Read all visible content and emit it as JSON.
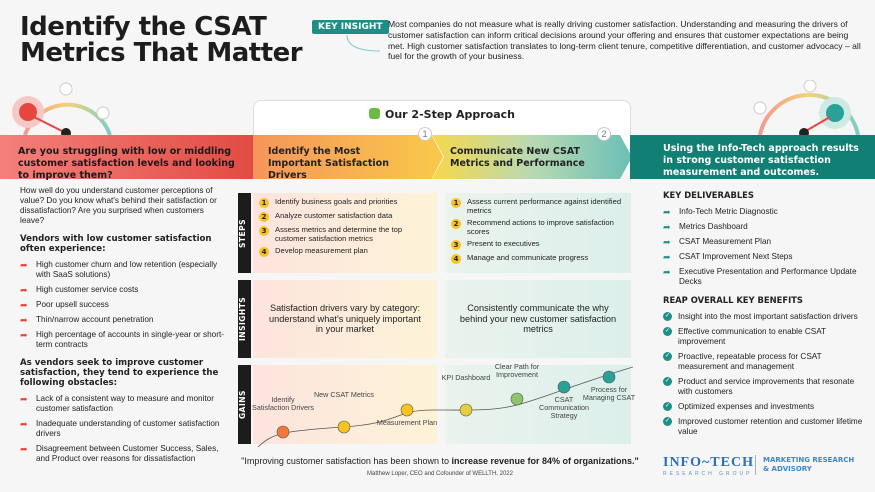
{
  "title": "Identify the CSAT Metrics That Matter",
  "key_insight": {
    "label": "KEY INSIGHT",
    "text": "Most companies do not measure what is really driving customer satisfaction. Understanding and measuring the drivers of customer satisfaction can inform critical decisions around your offering and ensures that customer expectations are being met. High customer satisfaction translates to long-term client tenure, competitive differentiation, and customer advocacy – all fuel for the growth of your business."
  },
  "approach_title": "Our 2-Step Approach",
  "banners": {
    "problem": "Are you struggling with low or middling customer satisfaction levels and looking to improve them?",
    "step1": "Identify the Most Important Satisfaction Drivers",
    "step2": "Communicate New CSAT Metrics and Performance",
    "result": "Using the Info-Tech approach results in strong customer satisfaction measurement and outcomes.",
    "step1_num": "1",
    "step2_num": "2"
  },
  "left": {
    "intro": "How well do you understand customer perceptions of value? Do you know what's behind their satisfaction or dissatisfaction? Are you surprised when customers leave?",
    "heading1": "Vendors with low customer satisfaction often experience:",
    "list1": [
      "High customer churn and low retention (especially with SaaS solutions)",
      "High customer service costs",
      "Poor upsell success",
      "Thin/narrow account penetration",
      "High percentage of accounts in single-year or short-term contracts"
    ],
    "heading2": "As vendors seek to improve customer satisfaction, they tend to experience the following obstacles:",
    "list2": [
      "Lack of a consistent way to measure and monitor customer satisfaction",
      "Inadequate understanding of customer satisfaction drivers",
      "Disagreement between Customer Success, Sales, and Product over reasons for dissatisfaction"
    ]
  },
  "rows": {
    "steps": "STEPS",
    "insights": "INSIGHTS",
    "gains": "GAINS"
  },
  "steps1": [
    "Identify business goals and priorities",
    "Analyze customer satisfaction data",
    "Assess metrics and determine the top customer satisfaction metrics",
    "Develop measurement plan"
  ],
  "steps2": [
    "Assess current performance against identified metrics",
    "Recommend actions to improve satisfaction scores",
    "Present to executives",
    "Manage and communicate progress"
  ],
  "insight1": "Satisfaction drivers vary by category: understand what's uniquely important in your market",
  "insight2": "Consistently communicate the why behind your new customer satisfaction metrics",
  "gains": [
    "Identify Satisfaction Drivers",
    "New CSAT Metrics",
    "Measurement Plan",
    "KPI Dashboard",
    "Clear Path for Improvement",
    "CSAT Communication Strategy",
    "Process for Managing CSAT"
  ],
  "right": {
    "heading1": "KEY DELIVERABLES",
    "deliverables": [
      "Info-Tech Metric Diagnostic",
      "Metrics Dashboard",
      "CSAT Measurement Plan",
      "CSAT Improvement Next Steps",
      "Executive Presentation and Performance Update Decks"
    ],
    "heading2": "REAP OVERALL KEY BENEFITS",
    "benefits": [
      "Insight into the most important satisfaction drivers",
      "Effective communication to enable CSAT improvement",
      "Proactive, repeatable process for CSAT measurement and management",
      "Product and service improvements that resonate with customers",
      "Optimized expenses and investments",
      "Improved customer retention and customer lifetime value"
    ]
  },
  "quote": {
    "text": "\"Improving customer satisfaction has been shown to ",
    "bold": "increase revenue for 84% of organizations.\"",
    "source": "Matthew Loper, CEO and Cofounder of WELLTH, 2022"
  },
  "logo": {
    "name": "INFO~TECH",
    "sub": "RESEARCH GROUP",
    "tag1": "MARKETING RESEARCH",
    "tag2": "& ADVISORY"
  },
  "colors": {
    "red": "#e24c43",
    "teal": "#127f75",
    "yellow": "#f8c220"
  }
}
